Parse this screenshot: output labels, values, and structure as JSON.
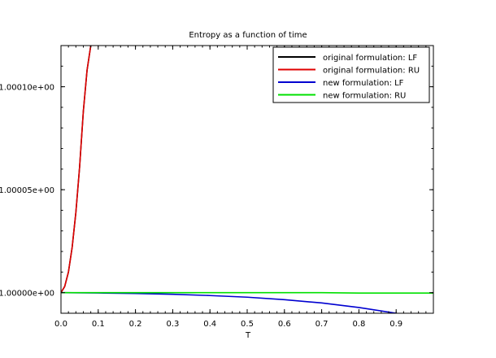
{
  "chart_data": {
    "type": "line",
    "title": "Entropy as a function of time",
    "xlabel": "T",
    "ylabel": "",
    "xlim": [
      0.0,
      1.0
    ],
    "ylim": [
      0.99999,
      1.00012
    ],
    "x_ticks": [
      "0.0",
      "0.1",
      "0.2",
      "0.3",
      "0.4",
      "0.5",
      "0.6",
      "0.7",
      "0.8",
      "0.9"
    ],
    "x_tick_values": [
      0.0,
      0.1,
      0.2,
      0.3,
      0.4,
      0.5,
      0.6,
      0.7,
      0.8,
      0.9
    ],
    "y_ticks": [
      "1.00000e+00",
      "1.00005e+00",
      "1.00010e+00"
    ],
    "y_tick_values": [
      1.0,
      1.00005,
      1.0001
    ],
    "legend_position": "top-right",
    "series": [
      {
        "name": "original formulation: LF",
        "color": "#000000",
        "x": [
          0.0,
          0.01,
          0.02,
          0.03,
          0.04,
          0.05,
          0.06,
          0.07,
          0.08
        ],
        "y": [
          1.0,
          1.000003,
          1.00001,
          1.000022,
          1.000039,
          1.000061,
          1.000088,
          1.000108,
          1.00012
        ]
      },
      {
        "name": "original formulation: RU",
        "color": "#e00000",
        "x": [
          0.0,
          0.01,
          0.02,
          0.03,
          0.04,
          0.05,
          0.06,
          0.07,
          0.08
        ],
        "y": [
          1.0,
          1.000003,
          1.00001,
          1.000022,
          1.000039,
          1.000061,
          1.000088,
          1.000108,
          1.00012
        ]
      },
      {
        "name": "new formulation: LF",
        "color": "#0000d0",
        "x": [
          0.0,
          0.1,
          0.2,
          0.3,
          0.4,
          0.5,
          0.6,
          0.7,
          0.8,
          0.9,
          1.0
        ],
        "y": [
          1.0,
          0.99999985,
          0.9999996,
          0.9999992,
          0.9999986,
          0.9999978,
          0.9999966,
          0.999995,
          0.9999928,
          0.99999,
          0.9999865
        ]
      },
      {
        "name": "new formulation: RU",
        "color": "#00e000",
        "x": [
          0.0,
          0.1,
          0.2,
          0.3,
          0.4,
          0.5,
          0.6,
          0.7,
          0.8,
          0.9,
          1.0
        ],
        "y": [
          1.0,
          1.0,
          1.0,
          1.0,
          1.0,
          1.0,
          1.0,
          1.0,
          0.9999998,
          0.9999998,
          0.9999998
        ]
      }
    ]
  }
}
